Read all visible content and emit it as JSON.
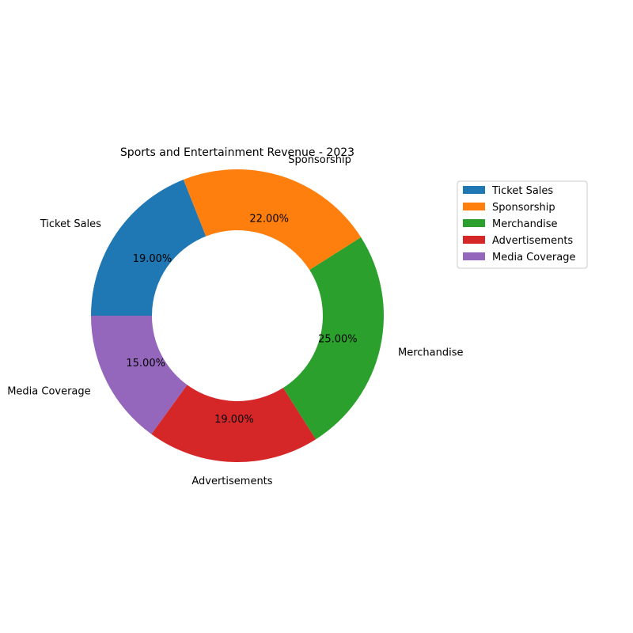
{
  "chart_data": {
    "type": "pie",
    "variant": "donut",
    "title": "Sports and Entertainment Revenue - 2023",
    "categories": [
      "Ticket Sales",
      "Sponsorship",
      "Merchandise",
      "Advertisements",
      "Media Coverage"
    ],
    "values": [
      19,
      22,
      25,
      19,
      15
    ],
    "value_labels": [
      "19.00%",
      "22.00%",
      "25.00%",
      "19.00%",
      "15.00%"
    ],
    "colors": [
      "#1f77b4",
      "#ff7f0e",
      "#2ca02c",
      "#d62728",
      "#9467bd"
    ],
    "start_angle_deg": 180,
    "direction": "clockwise",
    "legend": {
      "placement": "upper-right-outside",
      "entries": [
        "Ticket Sales",
        "Sponsorship",
        "Merchandise",
        "Advertisements",
        "Media Coverage"
      ]
    }
  }
}
